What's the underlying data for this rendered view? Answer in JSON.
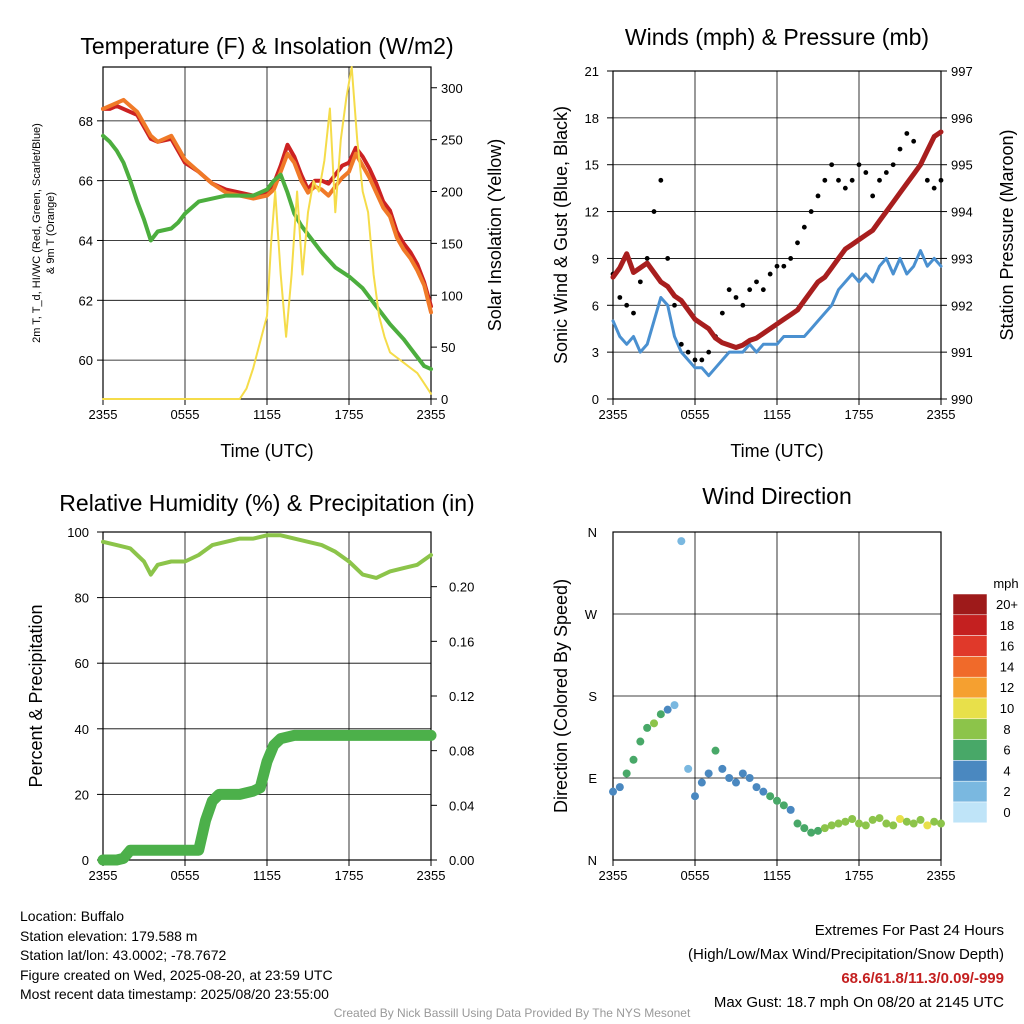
{
  "x_ticks": [
    "2355",
    "0555",
    "1155",
    "1755",
    "2355"
  ],
  "chart_data": [
    {
      "type": "line",
      "title": "Temperature (F) & Insolation (W/m2)",
      "xlabel": "Time (UTC)",
      "ylabel_left_line1": "2m T, T_d, HI/WC (Red, Green, Scarlet/Blue)",
      "ylabel_left_line2": "& 9m T (Orange)",
      "ylabel_right": "Solar Insolation (Yellow)",
      "x_ticks": [
        "2355",
        "0555",
        "1155",
        "1755",
        "2355"
      ],
      "ylim_left": [
        58.7,
        69.8
      ],
      "ylim_right": [
        0,
        320
      ],
      "y_ticks_left": [
        60,
        62,
        64,
        66,
        68
      ],
      "y_ticks_right": [
        0,
        50,
        100,
        150,
        200,
        250,
        300
      ],
      "series": [
        {
          "axis": "left",
          "color": "#cc2222",
          "x": [
            0,
            0.5,
            1,
            1.5,
            2,
            2.5,
            3,
            3.5,
            4,
            5,
            6,
            7,
            8,
            9,
            10,
            11,
            12,
            12.5,
            13,
            13.5,
            14,
            14.5,
            15,
            15.5,
            16,
            16.5,
            17,
            17.5,
            18,
            18.5,
            19,
            19.5,
            20,
            20.5,
            21,
            21.5,
            22,
            22.5,
            23,
            23.5,
            24
          ],
          "y": [
            68.4,
            68.4,
            68.5,
            68.4,
            68.3,
            68.2,
            67.8,
            67.4,
            67.3,
            67.4,
            66.6,
            66.3,
            65.9,
            65.7,
            65.6,
            65.5,
            65.6,
            65.9,
            66.5,
            67.2,
            66.8,
            66.2,
            65.7,
            66.0,
            66.0,
            65.9,
            66.2,
            66.5,
            66.6,
            67.1,
            66.8,
            66.4,
            65.9,
            65.3,
            65.0,
            64.3,
            63.9,
            63.6,
            63.2,
            62.6,
            61.8
          ]
        },
        {
          "axis": "left",
          "color": "#f07a28",
          "x": [
            0,
            0.5,
            1,
            1.5,
            2,
            2.5,
            3,
            3.5,
            4,
            5,
            6,
            7,
            8,
            9,
            10,
            11,
            12,
            12.5,
            13,
            13.5,
            14,
            14.5,
            15,
            15.5,
            16,
            16.5,
            17,
            17.5,
            18,
            18.5,
            19,
            19.5,
            20,
            20.5,
            21,
            21.5,
            22,
            22.5,
            23,
            23.5,
            24
          ],
          "y": [
            68.4,
            68.5,
            68.6,
            68.7,
            68.5,
            68.3,
            67.9,
            67.5,
            67.3,
            67.5,
            66.7,
            66.3,
            65.9,
            65.6,
            65.5,
            65.4,
            65.5,
            65.7,
            66.3,
            66.9,
            66.6,
            66.0,
            65.6,
            65.8,
            65.7,
            65.5,
            65.8,
            66.1,
            66.3,
            66.9,
            66.5,
            66.1,
            65.6,
            65.1,
            64.8,
            64.1,
            63.7,
            63.4,
            63.0,
            62.5,
            61.6
          ]
        },
        {
          "axis": "left",
          "color": "#4cae3e",
          "x": [
            0,
            0.5,
            1,
            1.5,
            2,
            2.5,
            3,
            3.5,
            4,
            5,
            5.5,
            6,
            7,
            8,
            9,
            10,
            11,
            12,
            12.5,
            13,
            13.5,
            14,
            14.5,
            15,
            16,
            17,
            18,
            19,
            20,
            21,
            22,
            22.5,
            23,
            23.5,
            24
          ],
          "y": [
            67.5,
            67.3,
            67.0,
            66.6,
            66.0,
            65.3,
            64.7,
            64.0,
            64.3,
            64.4,
            64.6,
            64.9,
            65.3,
            65.4,
            65.5,
            65.5,
            65.5,
            65.7,
            66.0,
            66.2,
            65.6,
            64.9,
            64.5,
            64.2,
            63.6,
            63.1,
            62.8,
            62.4,
            61.8,
            61.2,
            60.7,
            60.4,
            60.1,
            59.8,
            59.7
          ]
        },
        {
          "axis": "right",
          "color": "#f5dc4a",
          "x": [
            0,
            1,
            2,
            3,
            4,
            5,
            6,
            7,
            8,
            9,
            10,
            10.5,
            11,
            11.3,
            11.6,
            12,
            12.3,
            12.6,
            13,
            13.4,
            13.8,
            14.2,
            14.6,
            15,
            15.4,
            15.8,
            16.2,
            16.6,
            17,
            17.4,
            17.8,
            18.2,
            18.6,
            19,
            19.4,
            19.8,
            20.2,
            20.6,
            21,
            21.5,
            22,
            22.5,
            23,
            23.5,
            24
          ],
          "y": [
            0,
            0,
            0,
            0,
            0,
            0,
            0,
            0,
            0,
            0,
            0,
            10,
            30,
            45,
            60,
            80,
            150,
            200,
            120,
            60,
            120,
            200,
            120,
            180,
            210,
            200,
            230,
            280,
            180,
            250,
            290,
            320,
            250,
            200,
            180,
            120,
            80,
            60,
            45,
            40,
            35,
            30,
            25,
            15,
            5
          ]
        }
      ]
    },
    {
      "type": "line",
      "title": "Winds (mph) & Pressure (mb)",
      "xlabel": "Time (UTC)",
      "ylabel_left": "Sonic Wind & Gust (Blue, Black)",
      "ylabel_right": "Station Pressure (Maroon)",
      "x_ticks": [
        "2355",
        "0555",
        "1155",
        "1755",
        "2355"
      ],
      "ylim_left": [
        0,
        21
      ],
      "ylim_right": [
        990,
        997
      ],
      "y_ticks_left": [
        0,
        3,
        6,
        9,
        12,
        15,
        18,
        21
      ],
      "y_ticks_right": [
        990,
        991,
        992,
        993,
        994,
        995,
        996,
        997
      ],
      "series": [
        {
          "axis": "left",
          "color": "#4a90d0",
          "x": [
            0,
            0.5,
            1,
            1.5,
            2,
            2.5,
            3,
            3.5,
            4,
            4.5,
            5,
            5.5,
            6,
            6.5,
            7,
            7.5,
            8,
            8.5,
            9,
            9.5,
            10,
            10.5,
            11,
            11.5,
            12,
            12.5,
            13,
            13.5,
            14,
            14.5,
            15,
            15.5,
            16,
            16.5,
            17,
            17.5,
            18,
            18.5,
            19,
            19.5,
            20,
            20.5,
            21,
            21.5,
            22,
            22.5,
            23,
            23.5,
            24
          ],
          "y": [
            5,
            4,
            3.5,
            4,
            3,
            3.5,
            5,
            6.5,
            6,
            4,
            3,
            2.5,
            2,
            2,
            1.5,
            2,
            2.5,
            3,
            3,
            3,
            3.5,
            3,
            3.5,
            3.5,
            3.5,
            4,
            4,
            4,
            4,
            4.5,
            5,
            5.5,
            6,
            7,
            7.5,
            8,
            7.5,
            8,
            7.5,
            8.5,
            9,
            8,
            9,
            8,
            8.5,
            9.5,
            8.5,
            9,
            8.5
          ]
        },
        {
          "axis": "right",
          "color": "#a81e1e",
          "x": [
            0,
            0.5,
            1,
            1.5,
            2,
            2.5,
            3,
            3.5,
            4,
            4.5,
            5,
            5.5,
            6,
            6.5,
            7,
            7.5,
            8,
            8.5,
            9,
            9.5,
            10,
            10.5,
            11,
            11.5,
            12,
            12.5,
            13,
            13.5,
            14,
            14.5,
            15,
            15.5,
            16,
            16.5,
            17,
            17.5,
            18,
            18.5,
            19,
            19.5,
            20,
            20.5,
            21,
            21.5,
            22,
            22.5,
            23,
            23.5,
            24
          ],
          "y": [
            992.6,
            992.8,
            993.1,
            992.7,
            992.8,
            992.9,
            992.7,
            992.5,
            992.4,
            992.2,
            992.1,
            991.9,
            991.7,
            991.6,
            991.5,
            991.3,
            991.2,
            991.15,
            991.1,
            991.15,
            991.25,
            991.3,
            991.4,
            991.5,
            991.6,
            991.7,
            991.8,
            991.9,
            992.1,
            992.3,
            992.5,
            992.6,
            992.8,
            993.0,
            993.2,
            993.3,
            993.4,
            993.5,
            993.6,
            993.8,
            994.0,
            994.2,
            994.4,
            994.6,
            994.8,
            995.0,
            995.3,
            995.6,
            995.7
          ]
        }
      ],
      "gust_points": {
        "color": "#000000",
        "x": [
          0,
          0.5,
          1,
          1.5,
          2,
          2.5,
          3,
          3.5,
          4,
          4.5,
          5,
          5.5,
          6,
          6.5,
          7,
          7.5,
          8,
          8.5,
          9,
          9.5,
          10,
          10.5,
          11,
          11.5,
          12,
          12.5,
          13,
          13.5,
          14,
          14.5,
          15,
          15.5,
          16,
          16.5,
          17,
          17.5,
          18,
          18.5,
          19,
          19.5,
          20,
          20.5,
          21,
          21.5,
          22,
          22.5,
          23,
          23.5,
          24
        ],
        "y": [
          8,
          6.5,
          6,
          5.5,
          7.5,
          9,
          12,
          14,
          9,
          6,
          3.5,
          3,
          2.5,
          2.5,
          3,
          4,
          5.5,
          7,
          6.5,
          6,
          7,
          7.5,
          7,
          8,
          8.5,
          8.5,
          9,
          10,
          11,
          12,
          13,
          14,
          15,
          14,
          13.5,
          14,
          15,
          14.5,
          13,
          14,
          14.5,
          15,
          16,
          17,
          16.5,
          15,
          14,
          13.5,
          14
        ]
      }
    },
    {
      "type": "scatter",
      "title": "Relative Humidity (%) & Precipitation (in)",
      "xlabel": "",
      "ylabel_left": "Percent & Precipitation",
      "x_ticks": [
        "2355",
        "0555",
        "1155",
        "1755",
        "2355"
      ],
      "ylim_left": [
        0,
        100
      ],
      "ylim_right": [
        0,
        0.24
      ],
      "y_ticks_left": [
        0,
        20,
        40,
        60,
        80,
        100
      ],
      "y_ticks_right": [
        "0.00",
        "0.04",
        "0.08",
        "0.12",
        "0.16",
        "0.20"
      ],
      "series": [
        {
          "name": "RH",
          "axis": "left",
          "color": "#8cc44a",
          "x": [
            0,
            1,
            2,
            3,
            3.5,
            4,
            5,
            6,
            7,
            8,
            9,
            10,
            11,
            12,
            13,
            14,
            15,
            16,
            17,
            18,
            19,
            20,
            21,
            22,
            23,
            24
          ],
          "y": [
            97,
            96,
            95,
            91,
            87,
            90,
            91,
            91,
            93,
            96,
            97,
            98,
            98,
            99,
            99,
            98,
            97,
            96,
            94,
            91,
            87,
            86,
            88,
            89,
            90,
            93
          ]
        },
        {
          "name": "Precip",
          "axis": "left",
          "color": "#4cb04a",
          "x": [
            0,
            1,
            1.5,
            2,
            3,
            4,
            5,
            6,
            7,
            7.5,
            8,
            8.5,
            9,
            10,
            11,
            11.5,
            12,
            12.5,
            13,
            14,
            15,
            16,
            17,
            18,
            19,
            20,
            21,
            22,
            23,
            24
          ],
          "y": [
            0,
            0,
            0.5,
            3,
            3,
            3,
            3,
            3,
            3,
            12,
            18,
            20,
            20,
            20,
            21,
            22,
            30,
            35,
            37,
            38,
            38,
            38,
            38,
            38,
            38,
            38,
            38,
            38,
            38,
            38
          ]
        }
      ]
    },
    {
      "type": "scatter",
      "title": "Wind Direction",
      "ylabel_left": "Direction (Colored By Speed)",
      "x_ticks": [
        "2355",
        "0555",
        "1155",
        "1755",
        "2355"
      ],
      "y_ticks": [
        "N",
        "E",
        "S",
        "W",
        "N"
      ],
      "ylim": [
        0,
        360
      ],
      "legend_title": "mph",
      "legend_labels": [
        "20+",
        "18",
        "16",
        "14",
        "12",
        "10",
        "8",
        "6",
        "4",
        "2",
        "0"
      ],
      "legend_colors": [
        "#9e1a1a",
        "#c42020",
        "#e0392a",
        "#f06a2a",
        "#f5a030",
        "#e8e04a",
        "#8cc44a",
        "#48a868",
        "#4a88c0",
        "#7ab8e0",
        "#bfe4f8"
      ],
      "points": {
        "x": [
          0,
          0.5,
          1,
          1.5,
          2,
          2.5,
          3,
          3.5,
          4,
          4.5,
          5,
          5.5,
          6,
          6.5,
          7,
          7.5,
          8,
          8.5,
          9,
          9.5,
          10,
          10.5,
          11,
          11.5,
          12,
          12.5,
          13,
          13.5,
          14,
          14.5,
          15,
          15.5,
          16,
          16.5,
          17,
          17.5,
          18,
          18.5,
          19,
          19.5,
          20,
          20.5,
          21,
          21.5,
          22,
          22.5,
          23,
          23.5,
          24
        ],
        "y": [
          75,
          80,
          95,
          110,
          130,
          145,
          150,
          160,
          165,
          170,
          350,
          100,
          70,
          85,
          95,
          120,
          100,
          90,
          85,
          95,
          90,
          80,
          75,
          70,
          65,
          60,
          55,
          40,
          35,
          30,
          32,
          35,
          38,
          40,
          42,
          45,
          40,
          38,
          44,
          46,
          40,
          38,
          45,
          42,
          40,
          44,
          38,
          42,
          40
        ],
        "speed": [
          4,
          4,
          5,
          5,
          6,
          6,
          7,
          6,
          3,
          2,
          1,
          2,
          3,
          4,
          4,
          5,
          4,
          4,
          4,
          4,
          4,
          4,
          4,
          5,
          5,
          5,
          4,
          5,
          5,
          6,
          6,
          7,
          7,
          8,
          7,
          7,
          8,
          8,
          7,
          8,
          8,
          8,
          9,
          8,
          8,
          8,
          9,
          8,
          8
        ]
      }
    }
  ],
  "footer": {
    "location": "Location: Buffalo",
    "elevation": "Station elevation: 179.588 m",
    "latlon": "Station lat/lon: 43.0002; -78.7672",
    "created": "Figure created on Wed, 2025-08-20, at 23:59 UTC",
    "recent": "Most recent data timestamp: 2025/08/20 23:55:00"
  },
  "extremes": {
    "title": "Extremes For Past 24 Hours",
    "subtitle": "(High/Low/Max Wind/Precipitation/Snow Depth)",
    "values": "68.6/61.8/11.3/0.09/-999",
    "gust": "Max Gust: 18.7 mph On 08/20 at 2145 UTC"
  },
  "credit": "Created By Nick Bassill Using Data Provided By The NYS Mesonet"
}
